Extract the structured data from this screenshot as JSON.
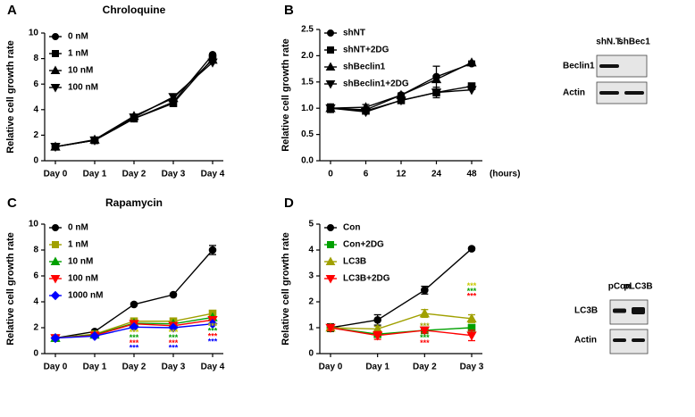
{
  "chart_data": [
    {
      "type": "line",
      "panel": "A",
      "title": "Chroloquine",
      "y_label": "Relative cell growth rate",
      "categories": [
        "Day 0",
        "Day 1",
        "Day 2",
        "Day 3",
        "Day 4"
      ],
      "ylim": [
        0,
        10
      ],
      "yticks": [
        0,
        2,
        4,
        6,
        8,
        10
      ],
      "legend": "upper left",
      "series": [
        {
          "name": "0 nM",
          "color": "#000000",
          "marker": "circle",
          "values": [
            1.1,
            1.6,
            3.3,
            4.6,
            8.3
          ]
        },
        {
          "name": "1 nM",
          "color": "#000000",
          "marker": "square",
          "values": [
            1.1,
            1.6,
            3.3,
            4.5,
            8.0
          ]
        },
        {
          "name": "10 nM",
          "color": "#000000",
          "marker": "triangle",
          "values": [
            1.1,
            1.65,
            3.5,
            4.9,
            7.9
          ]
        },
        {
          "name": "100 nM",
          "color": "#000000",
          "marker": "triangle-down",
          "values": [
            1.1,
            1.6,
            3.4,
            5.0,
            7.7
          ]
        }
      ]
    },
    {
      "type": "line",
      "panel": "B",
      "y_label": "Relative cell growth rate",
      "x_label": "(hours)",
      "categories": [
        "0",
        "6",
        "12",
        "24",
        "48"
      ],
      "ylim": [
        0,
        2.5
      ],
      "yticks": [
        {
          "value": 0,
          "label": "0.0"
        },
        0.5,
        {
          "value": 1,
          "label": "1.0"
        },
        1.5,
        {
          "value": 2,
          "label": "2.0"
        },
        2.5
      ],
      "legend": "upper left",
      "series": [
        {
          "name": "shNT",
          "color": "#000000",
          "marker": "circle",
          "values": [
            1.0,
            0.97,
            1.25,
            1.6,
            1.85
          ]
        },
        {
          "name": "shNT+2DG",
          "color": "#000000",
          "marker": "square",
          "values": [
            1.0,
            0.95,
            1.15,
            1.3,
            1.42
          ],
          "errors": [
            0.08,
            0.04,
            0.04,
            0.1,
            0.05
          ]
        },
        {
          "name": "shBeclin1",
          "color": "#000000",
          "marker": "triangle",
          "values": [
            1.0,
            1.02,
            1.25,
            1.55,
            1.87
          ],
          "errors": [
            0.08,
            0.05,
            0.04,
            0.25,
            0.03
          ]
        },
        {
          "name": "shBeclin1+2DG",
          "color": "#000000",
          "marker": "triangle-down",
          "values": [
            1.0,
            0.93,
            1.15,
            1.3,
            1.35
          ]
        }
      ]
    },
    {
      "type": "line",
      "panel": "C",
      "title": "Rapamycin",
      "y_label": "Relative cell growth rate",
      "categories": [
        "Day 0",
        "Day 1",
        "Day 2",
        "Day 3",
        "Day 4"
      ],
      "ylim": [
        0,
        10
      ],
      "yticks": [
        0,
        2,
        4,
        6,
        8,
        10
      ],
      "legend": "upper left",
      "series": [
        {
          "name": "0 nM",
          "color": "#000000",
          "marker": "circle",
          "values": [
            1.2,
            1.7,
            3.8,
            4.55,
            8.0
          ],
          "errors": [
            0.1,
            0.1,
            0.1,
            0.1,
            0.35
          ]
        },
        {
          "name": "1 nM",
          "color": "#a0a000",
          "marker": "square",
          "values": [
            1.2,
            1.5,
            2.5,
            2.5,
            3.1
          ]
        },
        {
          "name": "10 nM",
          "color": "#00a000",
          "marker": "triangle",
          "values": [
            1.2,
            1.45,
            2.35,
            2.3,
            2.8
          ]
        },
        {
          "name": "100 nM",
          "color": "#ff0000",
          "marker": "triangle-down",
          "values": [
            1.2,
            1.4,
            2.3,
            2.15,
            2.6
          ]
        },
        {
          "name": "1000 nM",
          "color": "#0000ff",
          "marker": "diamond",
          "values": [
            1.2,
            1.35,
            2.05,
            2.0,
            2.3
          ]
        }
      ],
      "annotations": [
        {
          "text": "***",
          "x": "Day 2",
          "y": 1.6,
          "color": "#c8c800"
        },
        {
          "text": "***",
          "x": "Day 2",
          "y": 1.2,
          "color": "#00a000"
        },
        {
          "text": "***",
          "x": "Day 2",
          "y": 0.8,
          "color": "#ff0000"
        },
        {
          "text": "***",
          "x": "Day 2",
          "y": 0.4,
          "color": "#0000ff"
        },
        {
          "text": "***",
          "x": "Day 3",
          "y": 1.6,
          "color": "#c8c800"
        },
        {
          "text": "***",
          "x": "Day 3",
          "y": 1.2,
          "color": "#00a000"
        },
        {
          "text": "***",
          "x": "Day 3",
          "y": 0.8,
          "color": "#ff0000"
        },
        {
          "text": "***",
          "x": "Day 3",
          "y": 0.4,
          "color": "#0000ff"
        },
        {
          "text": "***",
          "x": "Day 4",
          "y": 2.1,
          "color": "#c8c800"
        },
        {
          "text": "***",
          "x": "Day 4",
          "y": 1.7,
          "color": "#00a000"
        },
        {
          "text": "***",
          "x": "Day 4",
          "y": 1.3,
          "color": "#ff0000"
        },
        {
          "text": "***",
          "x": "Day 4",
          "y": 0.9,
          "color": "#0000ff"
        }
      ]
    },
    {
      "type": "line",
      "panel": "D",
      "y_label": "Relative cell growth rate",
      "categories": [
        "Day 0",
        "Day 1",
        "Day 2",
        "Day 3"
      ],
      "ylim": [
        0,
        5
      ],
      "yticks": [
        0,
        1,
        2,
        3,
        4,
        5
      ],
      "legend": "upper left",
      "series": [
        {
          "name": "Con",
          "color": "#000000",
          "marker": "circle",
          "values": [
            1.0,
            1.3,
            2.45,
            4.05
          ],
          "errors": [
            0.15,
            0.2,
            0.15,
            0.05
          ]
        },
        {
          "name": "Con+2DG",
          "color": "#00a000",
          "marker": "square",
          "values": [
            1.0,
            0.75,
            0.9,
            1.0
          ],
          "errors": [
            0.1,
            0.1,
            0.05,
            0.05
          ]
        },
        {
          "name": "LC3B",
          "color": "#a0a000",
          "marker": "triangle",
          "values": [
            1.0,
            0.95,
            1.55,
            1.35
          ],
          "errors": [
            0.1,
            0.1,
            0.15,
            0.15
          ]
        },
        {
          "name": "LC3B+2DG",
          "color": "#ff0000",
          "marker": "triangle-down",
          "values": [
            1.0,
            0.7,
            0.9,
            0.7
          ],
          "errors": [
            0.1,
            0.15,
            0.1,
            0.2
          ]
        }
      ],
      "annotations": [
        {
          "text": "***",
          "x": "Day 2",
          "y": 1.05,
          "color": "#a0a000"
        },
        {
          "text": "***",
          "x": "Day 2",
          "y": 0.6,
          "color": "#00a000"
        },
        {
          "text": "***",
          "x": "Day 2",
          "y": 0.4,
          "color": "#ff0000"
        },
        {
          "text": "***",
          "x": "Day 3",
          "y": 2.6,
          "color": "#c8c800"
        },
        {
          "text": "***",
          "x": "Day 3",
          "y": 2.4,
          "color": "#00a000"
        },
        {
          "text": "***",
          "x": "Day 3",
          "y": 2.2,
          "color": "#ff0000"
        }
      ]
    }
  ],
  "blots": [
    {
      "lanes": [
        "shN.T.",
        "shBec1"
      ],
      "rows": [
        "Beclin1",
        "Actin"
      ]
    },
    {
      "lanes": [
        "pCon",
        "pLC3B"
      ],
      "rows": [
        "LC3B",
        "Actin"
      ]
    }
  ]
}
